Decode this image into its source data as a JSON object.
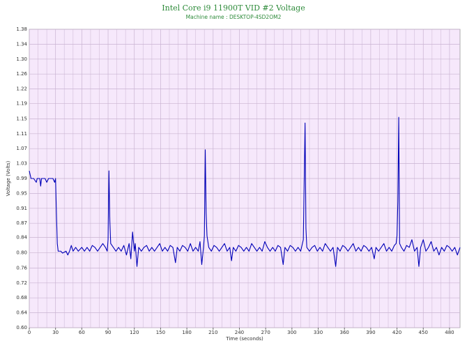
{
  "chart_data": {
    "type": "line",
    "title": "Intel Core i9 11900T VID #2 Voltage",
    "subtitle": "Machine name : DESKTOP-4SD2OM2",
    "xlabel": "Time (seconds)",
    "ylabel": "Voltage (Volts)",
    "grid": true,
    "title_color": "#2e8b3a",
    "background": "#f6e8fb",
    "xlim": [
      0,
      492
    ],
    "xticks": [
      0,
      30,
      60,
      90,
      120,
      150,
      180,
      210,
      240,
      270,
      300,
      330,
      360,
      390,
      420,
      450,
      480
    ],
    "ylim": [
      0.6,
      1.38
    ],
    "yticks": [
      {
        "value": 0.6,
        "label": "0.60"
      },
      {
        "value": 0.639,
        "label": "0.64"
      },
      {
        "value": 0.678,
        "label": "0.68"
      },
      {
        "value": 0.717,
        "label": "0.72"
      },
      {
        "value": 0.756,
        "label": "0.76"
      },
      {
        "value": 0.796,
        "label": "0.80"
      },
      {
        "value": 0.836,
        "label": "0.84"
      },
      {
        "value": 0.873,
        "label": "0.87"
      },
      {
        "value": 0.912,
        "label": "0.91"
      },
      {
        "value": 0.951,
        "label": "0.95"
      },
      {
        "value": 0.99,
        "label": "0.99"
      },
      {
        "value": 1.029,
        "label": "1.03"
      },
      {
        "value": 1.068,
        "label": "1.07"
      },
      {
        "value": 1.107,
        "label": "1.11"
      },
      {
        "value": 1.146,
        "label": "1.15"
      },
      {
        "value": 1.186,
        "label": "1.19"
      },
      {
        "value": 1.224,
        "label": "1.22"
      },
      {
        "value": 1.263,
        "label": "1.26"
      },
      {
        "value": 1.302,
        "label": "1.30"
      },
      {
        "value": 1.341,
        "label": "1.34"
      },
      {
        "value": 1.38,
        "label": "1.38"
      }
    ],
    "x": [
      0,
      2,
      5,
      8,
      9,
      12,
      13,
      14,
      18,
      20,
      22,
      25,
      27,
      29,
      30,
      31,
      32,
      33,
      36,
      38,
      42,
      44,
      46,
      48,
      50,
      53,
      56,
      60,
      63,
      66,
      69,
      72,
      75,
      78,
      81,
      84,
      87,
      89,
      90,
      91,
      92,
      93,
      96,
      99,
      102,
      105,
      108,
      111,
      114,
      116,
      118,
      120,
      121,
      123,
      125,
      128,
      131,
      134,
      137,
      140,
      143,
      146,
      149,
      152,
      155,
      158,
      161,
      164,
      167,
      169,
      172,
      175,
      178,
      181,
      184,
      187,
      190,
      193,
      195,
      197,
      199,
      200,
      201,
      202,
      203,
      205,
      208,
      211,
      214,
      217,
      220,
      223,
      226,
      229,
      231,
      233,
      236,
      239,
      242,
      245,
      248,
      251,
      254,
      257,
      260,
      263,
      266,
      269,
      272,
      275,
      278,
      281,
      284,
      287,
      290,
      292,
      295,
      298,
      301,
      304,
      307,
      310,
      313,
      314,
      315,
      316,
      317,
      320,
      323,
      326,
      329,
      332,
      335,
      338,
      341,
      344,
      347,
      350,
      352,
      355,
      358,
      361,
      364,
      367,
      370,
      373,
      376,
      379,
      382,
      385,
      388,
      391,
      394,
      396,
      399,
      402,
      405,
      408,
      411,
      414,
      417,
      419,
      420,
      421,
      422,
      423,
      425,
      428,
      431,
      434,
      437,
      440,
      443,
      445,
      447,
      450,
      453,
      456,
      459,
      462,
      465,
      468,
      471,
      474,
      477,
      480,
      483,
      486,
      489,
      492
    ],
    "series": [
      {
        "name": "VID #2",
        "color": "#0000b8",
        "values": [
          1.01,
          0.99,
          0.99,
          0.98,
          0.99,
          0.99,
          0.97,
          0.99,
          0.99,
          0.98,
          0.99,
          0.99,
          0.99,
          0.98,
          0.99,
          0.9,
          0.82,
          0.8,
          0.8,
          0.795,
          0.8,
          0.79,
          0.8,
          0.815,
          0.8,
          0.81,
          0.8,
          0.81,
          0.8,
          0.81,
          0.8,
          0.815,
          0.81,
          0.8,
          0.81,
          0.82,
          0.81,
          0.8,
          0.83,
          1.01,
          0.88,
          0.82,
          0.81,
          0.8,
          0.81,
          0.8,
          0.815,
          0.79,
          0.82,
          0.78,
          0.85,
          0.8,
          0.82,
          0.76,
          0.81,
          0.8,
          0.81,
          0.815,
          0.8,
          0.81,
          0.8,
          0.81,
          0.82,
          0.8,
          0.81,
          0.8,
          0.815,
          0.81,
          0.77,
          0.81,
          0.8,
          0.815,
          0.81,
          0.8,
          0.82,
          0.8,
          0.81,
          0.8,
          0.825,
          0.765,
          0.81,
          0.84,
          1.065,
          0.9,
          0.84,
          0.81,
          0.8,
          0.815,
          0.81,
          0.8,
          0.81,
          0.82,
          0.8,
          0.81,
          0.775,
          0.81,
          0.8,
          0.815,
          0.81,
          0.8,
          0.81,
          0.8,
          0.82,
          0.81,
          0.8,
          0.81,
          0.8,
          0.825,
          0.81,
          0.8,
          0.81,
          0.8,
          0.815,
          0.81,
          0.765,
          0.81,
          0.8,
          0.815,
          0.81,
          0.8,
          0.81,
          0.8,
          0.83,
          0.98,
          1.135,
          0.86,
          0.81,
          0.8,
          0.81,
          0.815,
          0.8,
          0.81,
          0.8,
          0.82,
          0.81,
          0.8,
          0.81,
          0.76,
          0.81,
          0.8,
          0.815,
          0.81,
          0.8,
          0.81,
          0.82,
          0.8,
          0.81,
          0.8,
          0.815,
          0.81,
          0.8,
          0.81,
          0.78,
          0.81,
          0.8,
          0.81,
          0.82,
          0.8,
          0.81,
          0.8,
          0.815,
          0.82,
          0.84,
          0.93,
          1.15,
          0.82,
          0.81,
          0.8,
          0.815,
          0.81,
          0.83,
          0.8,
          0.81,
          0.76,
          0.81,
          0.83,
          0.8,
          0.81,
          0.825,
          0.8,
          0.81,
          0.79,
          0.81,
          0.8,
          0.815,
          0.81,
          0.8,
          0.81,
          0.79,
          0.81
        ]
      }
    ]
  }
}
